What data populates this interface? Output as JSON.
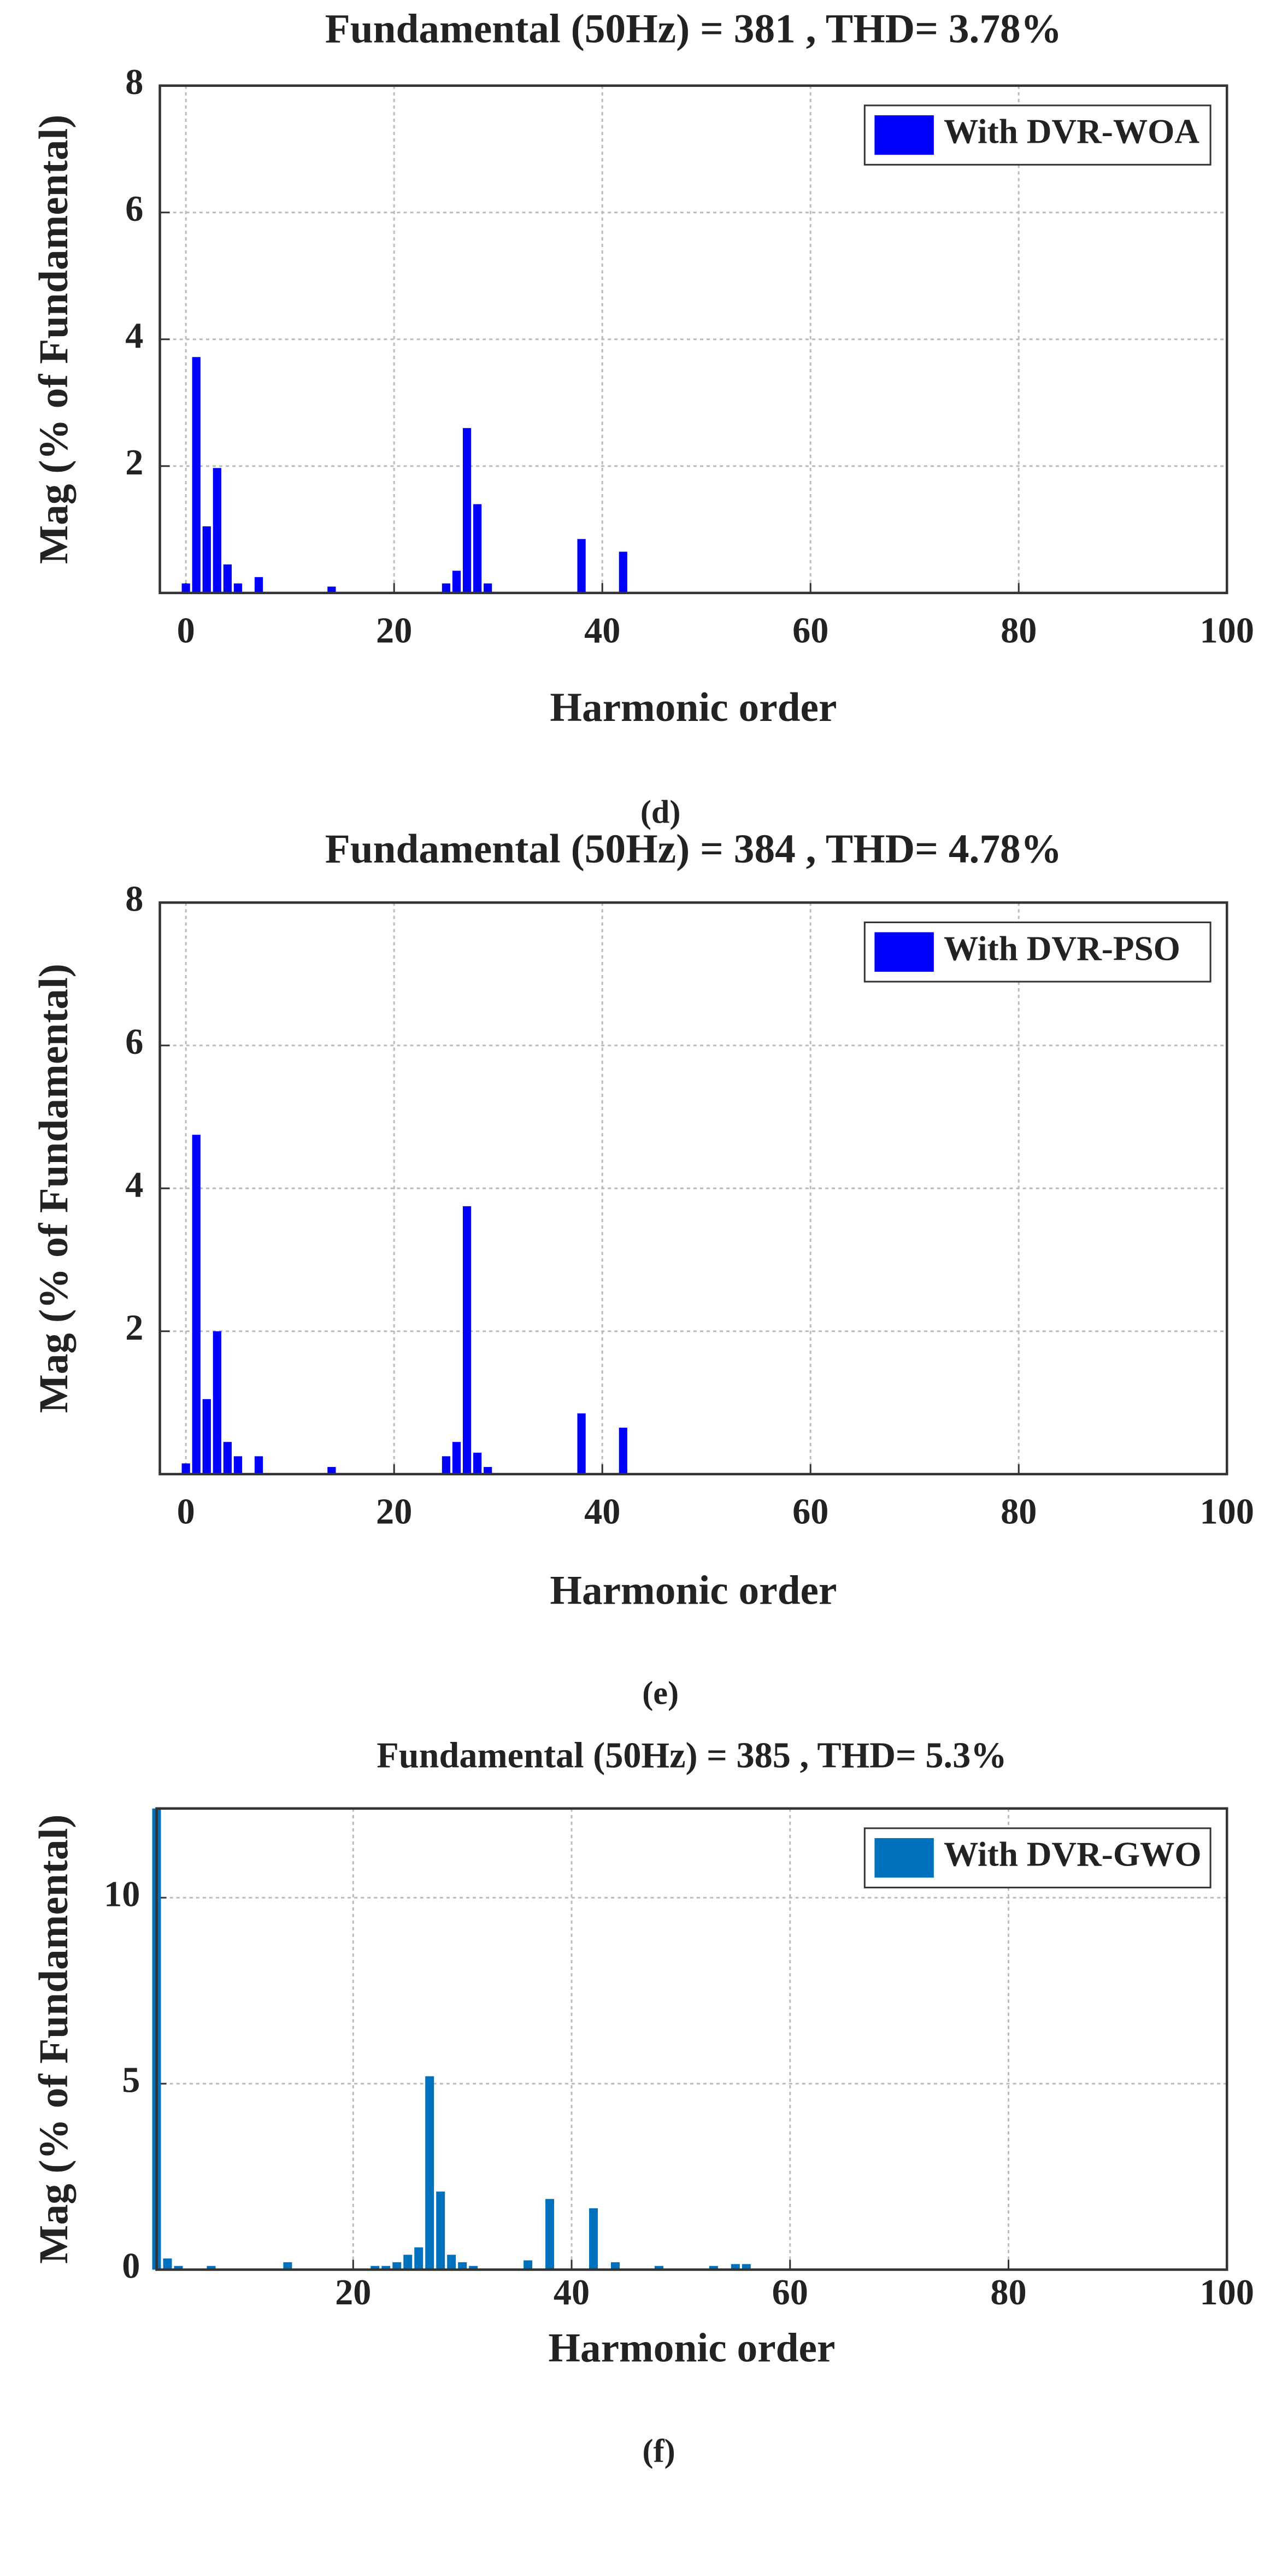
{
  "chart_data": [
    {
      "type": "bar",
      "title": "Fundamental (50Hz) = 381 , THD= 3.78%",
      "xlabel": "Harmonic order",
      "ylabel": "Mag (% of Fundamental)",
      "caption": "(d)",
      "x": [
        0,
        1,
        2,
        3,
        4,
        5,
        7,
        14,
        25,
        26,
        27,
        28,
        29,
        38,
        42
      ],
      "series": [
        {
          "name": "With DVR-WOA",
          "color": "#0000ff",
          "values": [
            0.15,
            3.72,
            1.05,
            1.97,
            0.45,
            0.15,
            0.25,
            0.1,
            0.15,
            0.35,
            2.6,
            1.4,
            0.15,
            0.85,
            0.65
          ]
        }
      ],
      "xlim": [
        -2.5,
        100
      ],
      "ylim": [
        0,
        8
      ],
      "xticks": [
        0,
        20,
        40,
        60,
        80,
        100
      ],
      "yticks": [
        2,
        4,
        6,
        8
      ],
      "grid": true,
      "legend": "northeast"
    },
    {
      "type": "bar",
      "title": "Fundamental (50Hz) = 384 , THD= 4.78%",
      "xlabel": "Harmonic order",
      "ylabel": "Mag (% of Fundamental)",
      "caption": "(e)",
      "x": [
        0,
        1,
        2,
        3,
        4,
        5,
        7,
        14,
        25,
        26,
        27,
        28,
        29,
        38,
        42
      ],
      "series": [
        {
          "name": "With DVR-PSO",
          "color": "#0000ff",
          "values": [
            0.15,
            4.75,
            1.05,
            2.0,
            0.45,
            0.25,
            0.25,
            0.1,
            0.25,
            0.45,
            3.75,
            0.3,
            0.1,
            0.85,
            0.65
          ]
        }
      ],
      "xlim": [
        -2.5,
        100
      ],
      "ylim": [
        0,
        8
      ],
      "xticks": [
        0,
        20,
        40,
        60,
        80,
        100
      ],
      "yticks": [
        2,
        4,
        6,
        8
      ],
      "grid": true,
      "legend": "northeast"
    },
    {
      "type": "bar",
      "title": "Fundamental (50Hz) = 385 , THD= 5.3%",
      "xlabel": "Harmonic order",
      "ylabel": "Mag (% of Fundamental)",
      "caption": "(f)",
      "x": [
        2,
        3,
        4,
        7,
        14,
        22,
        23,
        24,
        25,
        26,
        27,
        28,
        29,
        30,
        31,
        36,
        38,
        42,
        44,
        48,
        53,
        55,
        56
      ],
      "series": [
        {
          "name": "With DVR-GWO",
          "color": "#0072bd",
          "values": [
            12.4,
            0.3,
            0.1,
            0.1,
            0.2,
            0.1,
            0.1,
            0.2,
            0.4,
            0.6,
            5.2,
            2.1,
            0.4,
            0.2,
            0.1,
            0.25,
            1.9,
            1.65,
            0.2,
            0.1,
            0.1,
            0.15,
            0.15
          ]
        }
      ],
      "xlim": [
        2,
        100
      ],
      "ylim": [
        0,
        12.4
      ],
      "xticks": [
        20,
        40,
        60,
        80,
        100
      ],
      "yticks": [
        0,
        5,
        10
      ],
      "grid": true,
      "legend": "northeast"
    }
  ]
}
